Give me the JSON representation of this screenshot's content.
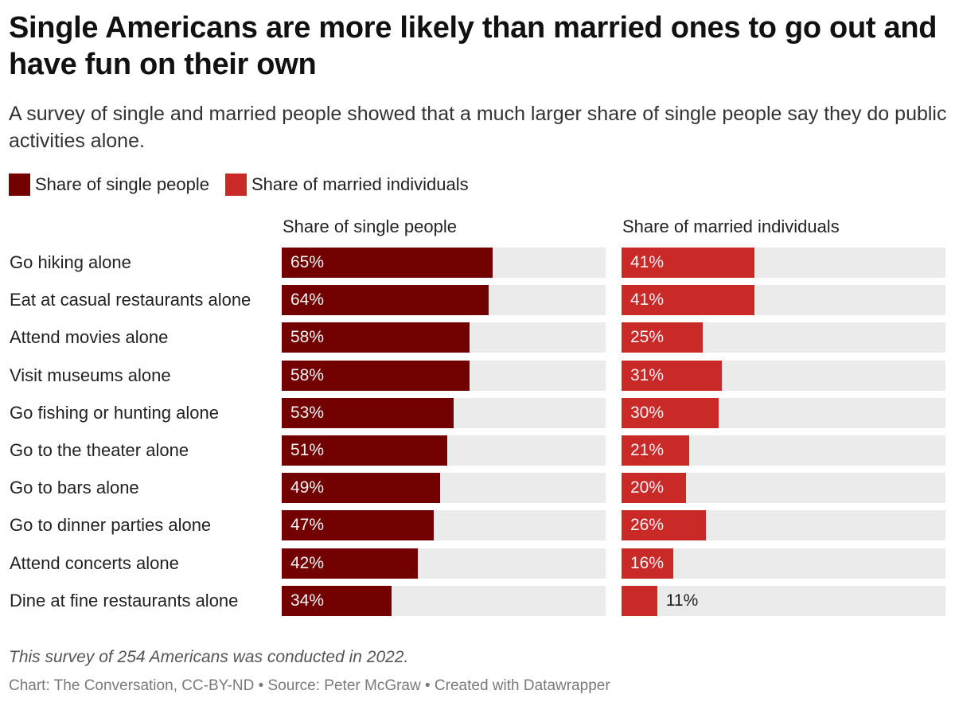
{
  "header": {
    "title": "Single Americans are more likely than married ones to go out and have fun on their own",
    "subtitle": "A survey of single and married people showed that a much larger share of single people say they do public activities alone."
  },
  "legend": [
    {
      "label": "Share of single people",
      "color": "#720000"
    },
    {
      "label": "Share of married individuals",
      "color": "#c92a27"
    }
  ],
  "footer": {
    "notes": "This survey of 254 Americans was conducted in 2022.",
    "byline": "Chart: The Conversation, CC-BY-ND • Source: Peter McGraw • Created with Datawrapper"
  },
  "chart_data": {
    "type": "bar",
    "orientation": "horizontal",
    "title": "Single Americans are more likely than married ones to go out and have fun on their own",
    "subtitle": "A survey of single and married people showed that a much larger share of single people say they do public activities alone.",
    "categories": [
      "Go hiking alone",
      "Eat at casual restaurants alone",
      "Attend movies alone",
      "Visit museums alone",
      "Go fishing or hunting alone",
      "Go to the theater alone",
      "Go to bars alone",
      "Go to dinner parties alone",
      "Attend concerts alone",
      "Dine at fine restaurants alone"
    ],
    "series": [
      {
        "name": "Share of single people",
        "color": "#720000",
        "values": [
          65,
          64,
          58,
          58,
          53,
          51,
          49,
          47,
          42,
          34
        ]
      },
      {
        "name": "Share of married individuals",
        "color": "#c92a27",
        "values": [
          41,
          41,
          25,
          31,
          30,
          21,
          20,
          26,
          16,
          11
        ]
      }
    ],
    "value_suffix": "%",
    "xlim": [
      0,
      100
    ],
    "xlabel": "",
    "ylabel": "",
    "grid": false,
    "legend_position": "top-left"
  }
}
